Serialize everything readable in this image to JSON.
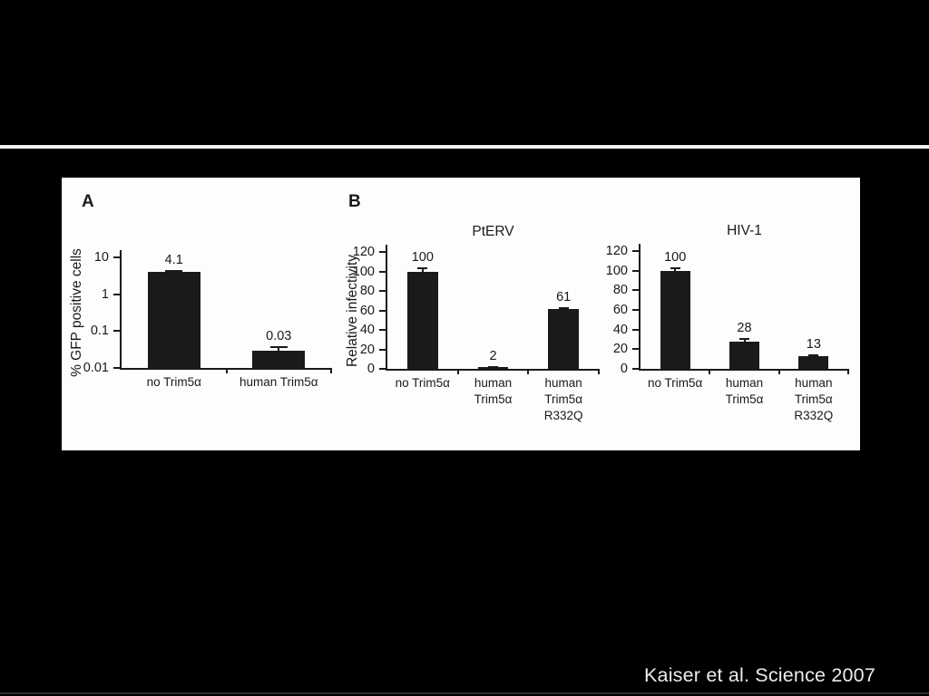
{
  "slide": {
    "citation": "Kaiser et al. Science 2007",
    "background_color": "#000000",
    "divider_color": "#f3f3f3",
    "panel_background": "#fdfdfd",
    "ink_color": "#1a1a1a"
  },
  "figure": {
    "panels": [
      {
        "label": "A"
      },
      {
        "label": "B"
      }
    ]
  },
  "chart_data": [
    {
      "type": "bar",
      "panel": "A",
      "title": "",
      "ylabel": "% GFP positive cells",
      "yscale": "log",
      "ylim": [
        0.01,
        10
      ],
      "yticks": [
        "10",
        "1",
        "0.1",
        "0.01"
      ],
      "ytick_values": [
        10,
        1,
        0.1,
        0.01
      ],
      "categories": [
        "no Trim5α",
        "human Trim5α"
      ],
      "values": [
        4.1,
        0.03
      ],
      "value_labels": [
        "4.1",
        "0.03"
      ],
      "errors": [
        0.4,
        0.008
      ],
      "bar_color": "#1a1a1a",
      "grid": false,
      "legend": null
    },
    {
      "type": "bar",
      "panel": "B",
      "title": "PtERV",
      "ylabel": "Relative infectivity",
      "yscale": "linear",
      "ylim": [
        0,
        120
      ],
      "yticks": [
        "120",
        "100",
        "80",
        "60",
        "40",
        "20",
        "0"
      ],
      "ytick_values": [
        120,
        100,
        80,
        60,
        40,
        20,
        0
      ],
      "categories": [
        "no Trim5α",
        "human\nTrim5α",
        "human\nTrim5α\nR332Q"
      ],
      "values": [
        100,
        2,
        61
      ],
      "value_labels": [
        "100",
        "2",
        "61"
      ],
      "errors": [
        4,
        1,
        2
      ],
      "bar_color": "#1a1a1a",
      "grid": false,
      "legend": null
    },
    {
      "type": "bar",
      "panel": "B",
      "title": "HIV-1",
      "ylabel": "",
      "yscale": "linear",
      "ylim": [
        0,
        120
      ],
      "yticks": [
        "120",
        "100",
        "80",
        "60",
        "40",
        "20",
        "0"
      ],
      "ytick_values": [
        120,
        100,
        80,
        60,
        40,
        20,
        0
      ],
      "categories": [
        "no Trim5α",
        "human\nTrim5α",
        "human\nTrim5α\nR332Q"
      ],
      "values": [
        100,
        28,
        13
      ],
      "value_labels": [
        "100",
        "28",
        "13"
      ],
      "errors": [
        3,
        3,
        2
      ],
      "bar_color": "#1a1a1a",
      "grid": false,
      "legend": null
    }
  ]
}
